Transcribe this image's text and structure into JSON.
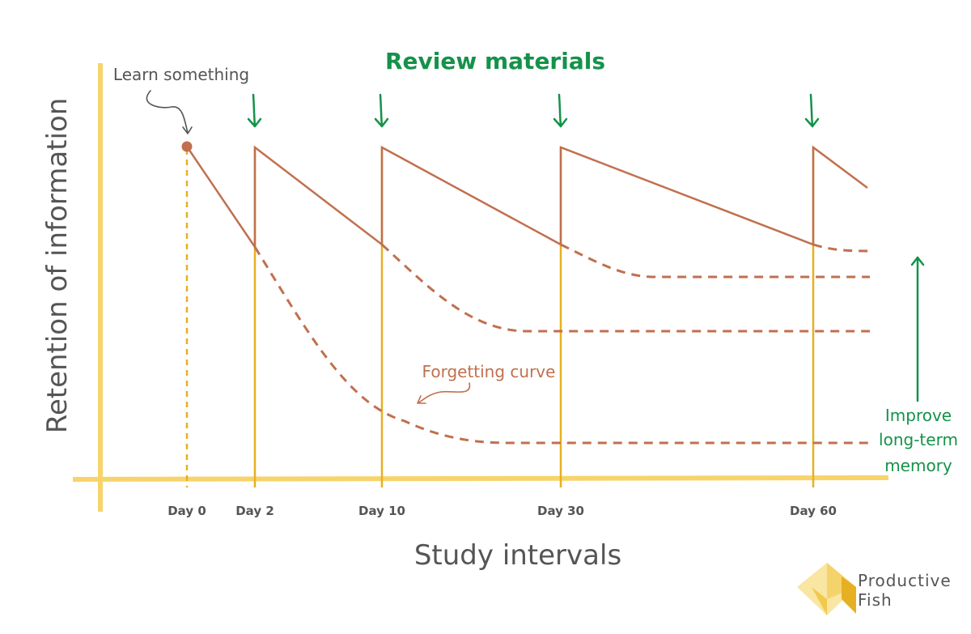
{
  "title": "Review materials",
  "annotations": {
    "learn": "Learn something",
    "forgetting": "Forgetting curve",
    "improve": [
      "Improve",
      "long-term",
      "memory"
    ]
  },
  "x_axis_title": "Study intervals",
  "y_axis_title": "Retention of information",
  "ticks": [
    "Day 0",
    "Day 2",
    "Day 10",
    "Day 30",
    "Day 60"
  ],
  "brand": [
    "Productive",
    "Fish"
  ],
  "colors": {
    "axis": "#f7d46b",
    "interval_line": "#e7b022",
    "curve": "#c0704e",
    "accent_green": "#15924a"
  }
}
